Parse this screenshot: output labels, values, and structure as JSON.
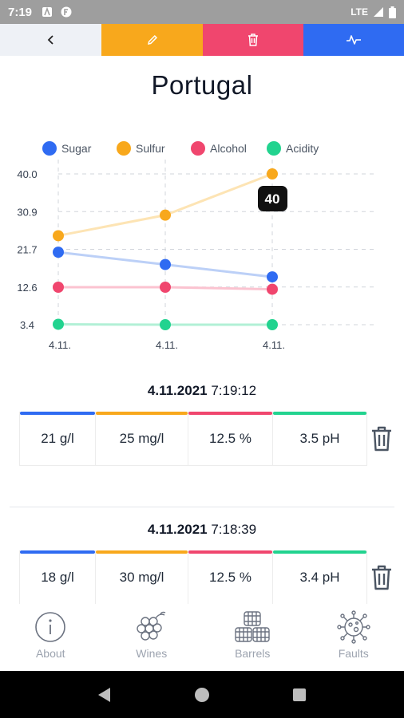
{
  "status": {
    "time": "7:19",
    "network": "LTE"
  },
  "page": {
    "title": "Portugal"
  },
  "chart_data": {
    "type": "line",
    "legend": [
      "Sugar",
      "Sulfur",
      "Alcohol",
      "Acidity"
    ],
    "x": [
      "4.11.",
      "4.11.",
      "4.11."
    ],
    "y_ticks": [
      "40.0",
      "30.9",
      "21.7",
      "12.6",
      "3.4"
    ],
    "ylim": [
      3.4,
      40.0
    ],
    "series": [
      {
        "name": "Sugar",
        "values": [
          21,
          18,
          15
        ],
        "color": "#2f6bf2",
        "line": "#bcd0f7"
      },
      {
        "name": "Sulfur",
        "values": [
          25,
          30,
          40
        ],
        "color": "#f8a81c",
        "line": "#fde4b4"
      },
      {
        "name": "Alcohol",
        "values": [
          12.5,
          12.5,
          12.0
        ],
        "color": "#f0466e",
        "line": "#fbc3d0"
      },
      {
        "name": "Acidity",
        "values": [
          3.5,
          3.4,
          3.4
        ],
        "color": "#22d38f",
        "line": "#b2f0d6"
      }
    ],
    "tooltip": "40",
    "grid": true,
    "legend_position": "top"
  },
  "measurements": [
    {
      "date": "4.11.2021",
      "time": "7:19:12",
      "sugar": "21 g/l",
      "sulfur": "25 mg/l",
      "alcohol": "12.5 %",
      "acidity": "3.5 pH"
    },
    {
      "date": "4.11.2021",
      "time": "7:18:39",
      "sugar": "18 g/l",
      "sulfur": "30 mg/l",
      "alcohol": "12.5 %",
      "acidity": "3.4 pH"
    }
  ],
  "nav": {
    "about": "About",
    "wines": "Wines",
    "barrels": "Barrels",
    "faults": "Faults"
  },
  "colors": {
    "sugar": "#2f6bf2",
    "sulfur": "#f8a81c",
    "alcohol": "#f0466e",
    "acidity": "#22d38f"
  }
}
